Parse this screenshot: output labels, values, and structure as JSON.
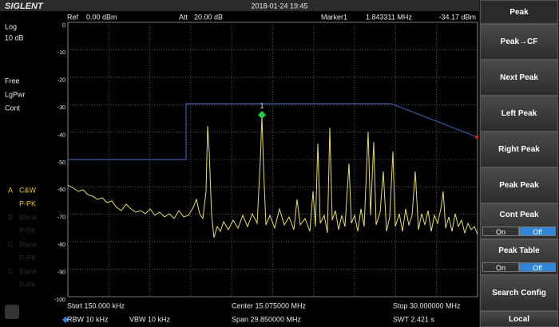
{
  "header": {
    "brand": "SIGLENT",
    "datetime": "2018-01-24 19:45"
  },
  "status": {
    "ref_label": "Ref",
    "ref": "0.00 dBm",
    "att_label": "Att",
    "att": "20.00 dB",
    "marker_label": "Marker1",
    "marker_freq": "1.843311 MHz",
    "marker_level": "-34.17 dBm"
  },
  "left_panel": {
    "scale": "Log",
    "div": "10 dB",
    "modes": [
      "Free",
      "LgPwr",
      "Cont"
    ],
    "traces": [
      {
        "letter": "A",
        "name": "C&W",
        "mode": "P-PK"
      },
      {
        "letter": "B",
        "name": "Blank",
        "mode": "P-PK"
      },
      {
        "letter": "C",
        "name": "Blank",
        "mode": "P-PK"
      },
      {
        "letter": "D",
        "name": "Blank",
        "mode": "P-PK"
      }
    ]
  },
  "y_axis": {
    "ticks": [
      0,
      -10,
      -20,
      -30,
      -40,
      -50,
      -60,
      -70,
      -80,
      -90,
      -100
    ]
  },
  "marker": {
    "id": "1"
  },
  "footer": {
    "start": "Start  150.000 kHz",
    "center": "Center  15.075000 MHz",
    "stop": "Stop  30.000000 MHz",
    "rbw": "RBW  10 kHz",
    "vbw": "VBW  10 kHz",
    "span": "Span   29.850000 MHz",
    "swt": "SWT  2.421 s"
  },
  "menu": {
    "title": "Peak",
    "buttons": [
      {
        "label": "Peak→CF"
      },
      {
        "label": "Next Peak"
      },
      {
        "label": "Left Peak"
      },
      {
        "label": "Right Peak"
      },
      {
        "label": "Peak Peak"
      },
      {
        "label": "Cont Peak",
        "on": "On",
        "off": "Off"
      },
      {
        "label": "Peak Table",
        "on": "On",
        "off": "Off"
      },
      {
        "label": "Search Config"
      }
    ],
    "local": "Local"
  }
}
